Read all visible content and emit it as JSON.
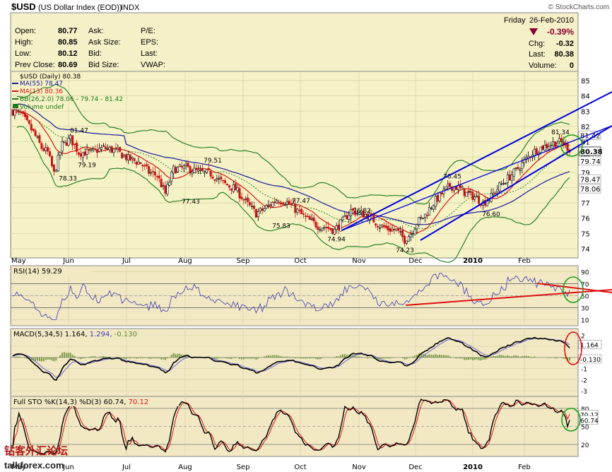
{
  "header": {
    "symbol": "$USD",
    "name": "(US Dollar Index (EOD))",
    "exchange": "INDX",
    "copyright": "© StockCharts.com",
    "day": "Friday",
    "date": "26-Feb-2010",
    "pct_change": "-0.39%"
  },
  "quote": {
    "open": {
      "label": "Open:",
      "value": "80.77"
    },
    "high": {
      "label": "High:",
      "value": "80.85"
    },
    "low": {
      "label": "Low:",
      "value": "80.12"
    },
    "prev_close": {
      "label": "Prev Close:",
      "value": "80.69"
    },
    "ask": {
      "label": "Ask:",
      "value": ""
    },
    "ask_size": {
      "label": "Ask Size:",
      "value": ""
    },
    "bid": {
      "label": "Bid:",
      "value": ""
    },
    "bid_size": {
      "label": "Bid Size:",
      "value": ""
    },
    "pe": {
      "label": "P/E:",
      "value": ""
    },
    "eps": {
      "label": "EPS:",
      "value": ""
    },
    "last_r": {
      "label": "Last:",
      "value": ""
    },
    "vwap": {
      "label": "VWAP:",
      "value": ""
    },
    "chg": {
      "label": "Chg:",
      "value": "-0.32"
    },
    "last": {
      "label": "Last:",
      "value": "80.38"
    },
    "volume": {
      "label": "Volume:",
      "value": "0"
    }
  },
  "legend": {
    "price": "$USD (Daily) 80.38",
    "ma55": "MA(55) 78.47",
    "ma13": "MA(13) 80.36",
    "bb": "BB(26,2.0) 78.06 - 79.74 - 81.42",
    "volume": "Volume undef"
  },
  "panels": {
    "rsi_label": "RSI(14) 59.29",
    "macd_label_a": "MACD(5,34,5) 1.164,",
    "macd_label_b": "1.294,",
    "macd_label_c": "-0.130",
    "sto_label_a": "Full STO %K(14,3) %D(3) 60.74,",
    "sto_label_b": "70.12"
  },
  "watermark": {
    "chinese": "钻客外汇论坛",
    "site": "talkforex.com"
  },
  "colors": {
    "price_bg": "#f5f2c5",
    "indicator_bg": "#f2e8c4",
    "ma55": "#1a1aa0",
    "ma13": "#d81818",
    "bb": "#1b7a1b",
    "trend": "#0000e0",
    "ellipse": "#1a9e1a",
    "red_ellipse": "#e01010",
    "down": "#c81414",
    "up": "#000000",
    "macd_hist": "#5e8a2a",
    "negative": "#8b0030"
  },
  "chart_data": [
    {
      "type": "candlestick",
      "title": "$USD (Daily) 80.38",
      "x_labels": [
        "May",
        "Jun",
        "Jul",
        "Aug",
        "Sep",
        "Oct",
        "Nov",
        "Dec",
        "2010",
        "Feb"
      ],
      "y_ticks": [
        74,
        75,
        76,
        77,
        78,
        79,
        80,
        81,
        82,
        83,
        84,
        85
      ],
      "ylim": [
        73.4,
        85.6
      ],
      "last_values": {
        "close": 80.38,
        "bb_upper": 81.42,
        "bb_mid": 79.74,
        "bb_lower": 78.06,
        "ma55": 78.47,
        "ma13": 80.36
      },
      "annotations": [
        {
          "text": "81.47",
          "x": "Jun",
          "y": 81.47
        },
        {
          "text": "79.19",
          "x": "Jun",
          "y": 79.19
        },
        {
          "text": "78.33",
          "x": "Jun",
          "y": 78.33
        },
        {
          "text": "79.51",
          "x": "Aug",
          "y": 79.51
        },
        {
          "text": "77.43",
          "x": "Aug",
          "y": 77.43
        },
        {
          "text": "77.47",
          "x": "Oct",
          "y": 77.47
        },
        {
          "text": "75.83",
          "x": "Sep",
          "y": 75.83
        },
        {
          "text": "76.82",
          "x": "Nov",
          "y": 76.82
        },
        {
          "text": "74.94",
          "x": "Nov",
          "y": 74.94
        },
        {
          "text": "74.23",
          "x": "Dec",
          "y": 74.23
        },
        {
          "text": "78.45",
          "x": "Dec",
          "y": 78.45
        },
        {
          "text": "76.60",
          "x": "2010",
          "y": 76.6
        },
        {
          "text": "81.34",
          "x": "Feb",
          "y": 81.34
        }
      ],
      "axis_labels": [
        "80.38",
        "81.42",
        "79.74",
        "78.47",
        "78.06"
      ]
    },
    {
      "type": "line",
      "title": "RSI(14) 59.29",
      "y_ticks": [
        90,
        70,
        50,
        30,
        10
      ],
      "ylim": [
        0,
        100
      ],
      "last_value": 59.29
    },
    {
      "type": "line",
      "title": "MACD(5,34,5) 1.164, 1.294, -0.130",
      "y_ticks": [
        2,
        1,
        0,
        -1,
        -2,
        -3
      ],
      "ylim": [
        -3.5,
        2.6
      ],
      "last_values": {
        "macd": 1.164,
        "signal": 1.294,
        "histogram": -0.13
      },
      "axis_labels": [
        "1.164",
        "-0.130"
      ]
    },
    {
      "type": "line",
      "title": "Full STO %K(14,3) %D(3) 60.74, 70.12",
      "y_ticks": [
        80,
        50,
        20
      ],
      "ylim": [
        0,
        100
      ],
      "last_values": {
        "k": 60.74,
        "d": 70.12
      },
      "axis_labels": [
        "70.12",
        "60.74"
      ]
    }
  ]
}
